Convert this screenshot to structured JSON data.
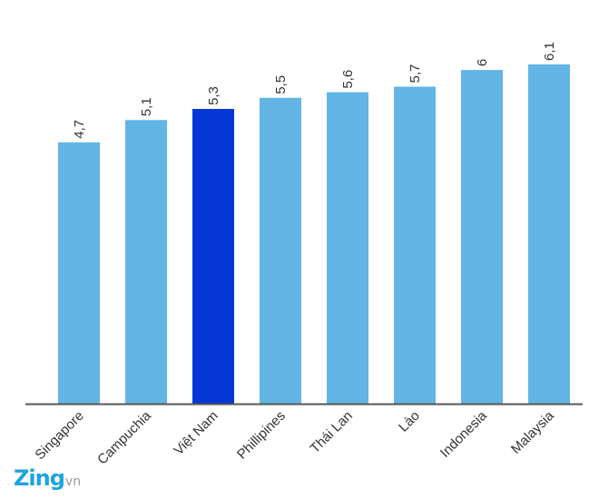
{
  "chart_data": {
    "type": "bar",
    "categories": [
      "Singapore",
      "Campuchia",
      "Việt Nam",
      "Phillipines",
      "Thái Lan",
      "Lào",
      "Indonesia",
      "Malaysia"
    ],
    "values": [
      4.7,
      5.1,
      5.3,
      5.5,
      5.6,
      5.7,
      6,
      6.1
    ],
    "value_labels": [
      "4,7",
      "5,1",
      "5,3",
      "5,5",
      "5,6",
      "5,7",
      "6",
      "6,1"
    ],
    "highlight_category": "Việt Nam",
    "colors": {
      "bar": "#62b5e5",
      "highlight": "#0536d6",
      "axis": "#555555"
    },
    "title": "",
    "xlabel": "",
    "ylabel": "",
    "grid": false,
    "legend": "none"
  },
  "branding": {
    "logo_main": "Zing",
    "logo_suffix": "vn"
  }
}
